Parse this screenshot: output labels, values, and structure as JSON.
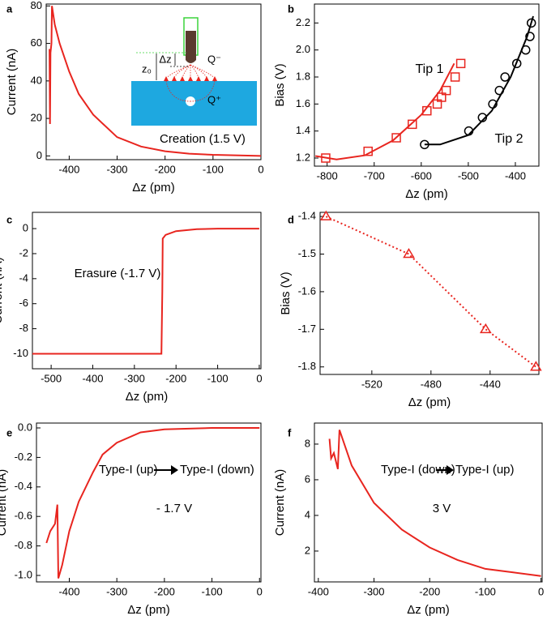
{
  "chart_data": [
    {
      "type": "line",
      "panel": "a",
      "x_label": "Δz (pm)",
      "y_label": "Current (nA)",
      "xlim": [
        -448,
        0
      ],
      "ylim": [
        -2,
        81
      ],
      "xticks": [
        -400,
        -300,
        -200,
        -100,
        0
      ],
      "yticks": [
        0,
        20,
        40,
        60,
        80
      ],
      "series": [
        {
          "color": "#e8251f",
          "x": [
            -441,
            -440,
            -439,
            -437,
            -436,
            -430,
            -420,
            -400,
            -380,
            -350,
            -300,
            -250,
            -200,
            -150,
            -100,
            0
          ],
          "values": [
            57,
            17,
            55,
            60,
            80,
            70,
            60,
            45,
            33,
            22,
            10,
            5,
            2.5,
            1.2,
            0.6,
            0
          ]
        }
      ],
      "annotations": [
        "Creation (1.5 V)",
        "Δz",
        "z₀",
        "Q⁻",
        "Q⁺"
      ]
    },
    {
      "type": "scatter",
      "panel": "b",
      "x_label": "Δz (pm)",
      "y_label": "Bias (V)",
      "xlim": [
        -827,
        -350
      ],
      "ylim": [
        1.14,
        2.34
      ],
      "xticks": [
        -800,
        -700,
        -600,
        -500,
        -400
      ],
      "yticks": [
        1.2,
        1.4,
        1.6,
        1.8,
        {
          "value": 2,
          "label": "2.0"
        },
        2.2
      ],
      "series": [
        {
          "name": "Tip 1",
          "color": "#e8251f",
          "marker": "square",
          "x": [
            -803,
            -713,
            -653,
            -619,
            -588,
            -566,
            -557,
            -547,
            -528,
            -516
          ],
          "values": [
            1.2,
            1.25,
            1.35,
            1.45,
            1.55,
            1.6,
            1.65,
            1.7,
            1.8,
            1.9
          ],
          "fit_x": [
            -825,
            -780,
            -720,
            -660,
            -600,
            -560,
            -530
          ],
          "fit_values": [
            1.215,
            1.19,
            1.22,
            1.33,
            1.52,
            1.7,
            1.9
          ]
        },
        {
          "name": "Tip 2",
          "color": "#000000",
          "marker": "circle",
          "x": [
            -593,
            -499,
            -470,
            -448,
            -434,
            -422,
            -397,
            -378,
            -369,
            -366
          ],
          "values": [
            1.3,
            1.4,
            1.5,
            1.6,
            1.7,
            1.8,
            1.9,
            2.0,
            2.1,
            2.2
          ],
          "fit_x": [
            -593,
            -560,
            -500,
            -450,
            -410,
            -375,
            -362
          ],
          "fit_values": [
            1.3,
            1.3,
            1.37,
            1.55,
            1.8,
            2.1,
            2.25
          ]
        }
      ]
    },
    {
      "type": "line",
      "panel": "c",
      "x_label": "Δz (pm)",
      "y_label": "Current (nA)",
      "xlim": [
        -545,
        4
      ],
      "ylim": [
        -11.2,
        1.3
      ],
      "xticks": [
        -500,
        -400,
        -300,
        -200,
        -100,
        0
      ],
      "yticks": [
        -10,
        -8,
        -6,
        -4,
        -2,
        0
      ],
      "series": [
        {
          "color": "#e8251f",
          "x": [
            -545,
            -235,
            -233,
            -232,
            -225,
            -200,
            -150,
            -100,
            0
          ],
          "values": [
            -10,
            -10,
            -5,
            -0.8,
            -0.5,
            -0.2,
            -0.05,
            0,
            0
          ]
        }
      ],
      "annotations": [
        "Erasure (-1.7 V)"
      ]
    },
    {
      "type": "line",
      "panel": "d",
      "x_label": "Δz (pm)",
      "y_label": "Bias (V)",
      "xlim": [
        -555,
        -407
      ],
      "ylim": [
        -1.82,
        -1.389
      ],
      "xticks": [
        -520,
        -480,
        -440
      ],
      "yticks": [
        -1.8,
        -1.7,
        -1.6,
        -1.5,
        -1.4
      ],
      "series": [
        {
          "color": "#e8251f",
          "marker": "triangle",
          "dashed": true,
          "x": [
            -551,
            -495,
            -443,
            -409
          ],
          "values": [
            -1.4,
            -1.5,
            -1.7,
            -1.8
          ]
        }
      ]
    },
    {
      "type": "line",
      "panel": "e",
      "x_label": "Δz (pm)",
      "y_label": "Current (nA)",
      "xlim": [
        -469,
        3
      ],
      "ylim": [
        -1.044,
        0.033
      ],
      "xticks": [
        -400,
        -300,
        -200,
        -100,
        0
      ],
      "yticks": [
        {
          "value": -1,
          "label": "-1.0"
        },
        -0.8,
        -0.6,
        -0.4,
        -0.2,
        {
          "value": 0,
          "label": "0.0"
        }
      ],
      "series": [
        {
          "color": "#e8251f",
          "x": [
            -448,
            -440,
            -430,
            -425,
            -423,
            -415,
            -400,
            -380,
            -350,
            -330,
            -300,
            -250,
            -200,
            -100,
            0
          ],
          "values": [
            -0.78,
            -0.7,
            -0.65,
            -0.52,
            -1.02,
            -0.93,
            -0.7,
            -0.5,
            -0.3,
            -0.18,
            -0.1,
            -0.03,
            -0.01,
            0,
            0
          ]
        }
      ],
      "annotations": [
        "Type-I (up)",
        "Type-I (down)",
        "- 1.7 V"
      ]
    },
    {
      "type": "line",
      "panel": "f",
      "x_label": "Δz (pm)",
      "y_label": "Current (nA)",
      "xlim": [
        -407,
        2
      ],
      "ylim": [
        0.27,
        9.18
      ],
      "xticks": [
        -400,
        -300,
        -200,
        -100,
        0
      ],
      "yticks": [
        2,
        4,
        6,
        8
      ],
      "series": [
        {
          "color": "#e8251f",
          "x": [
            -380,
            -377,
            -372,
            -365,
            -362,
            -340,
            -300,
            -250,
            -200,
            -150,
            -100,
            -50,
            0
          ],
          "values": [
            8.3,
            7.2,
            7.5,
            6.6,
            8.8,
            6.8,
            4.7,
            3.2,
            2.2,
            1.5,
            1.0,
            0.8,
            0.6
          ]
        }
      ],
      "annotations": [
        "Type-I (down)",
        "Type-I (up)",
        "3 V"
      ]
    }
  ]
}
